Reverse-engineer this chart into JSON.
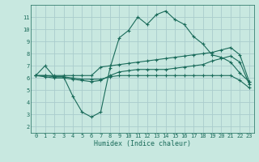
{
  "line1_x": [
    0,
    1,
    2,
    3,
    4,
    5,
    6,
    7,
    8,
    9,
    10,
    11,
    12,
    13,
    14,
    15,
    16,
    17,
    18,
    19,
    20,
    21,
    22,
    23
  ],
  "line1_y": [
    6.2,
    7.0,
    6.1,
    6.1,
    4.5,
    3.2,
    2.8,
    3.2,
    6.8,
    9.3,
    9.9,
    11.0,
    10.4,
    11.2,
    11.5,
    10.8,
    10.4,
    9.4,
    8.8,
    7.9,
    7.7,
    7.3,
    6.4,
    5.7
  ],
  "line2_x": [
    0,
    1,
    2,
    3,
    4,
    5,
    6,
    7,
    8,
    9,
    10,
    11,
    12,
    13,
    14,
    15,
    16,
    17,
    18,
    19,
    20,
    21,
    22,
    23
  ],
  "line2_y": [
    6.2,
    6.2,
    6.2,
    6.2,
    6.2,
    6.2,
    6.2,
    6.9,
    7.0,
    7.1,
    7.2,
    7.3,
    7.4,
    7.5,
    7.6,
    7.7,
    7.8,
    7.9,
    8.0,
    8.1,
    8.3,
    8.5,
    7.9,
    5.7
  ],
  "line3_x": [
    0,
    1,
    2,
    3,
    4,
    5,
    6,
    7,
    8,
    9,
    10,
    11,
    12,
    13,
    14,
    15,
    16,
    17,
    18,
    19,
    20,
    21,
    22,
    23
  ],
  "line3_y": [
    6.2,
    6.2,
    6.1,
    6.1,
    6.0,
    5.9,
    5.9,
    5.9,
    6.1,
    6.2,
    6.2,
    6.2,
    6.2,
    6.2,
    6.2,
    6.2,
    6.2,
    6.2,
    6.2,
    6.2,
    6.2,
    6.2,
    5.8,
    5.2
  ],
  "line4_x": [
    0,
    1,
    2,
    3,
    4,
    5,
    6,
    7,
    8,
    9,
    10,
    11,
    12,
    13,
    14,
    15,
    16,
    17,
    18,
    19,
    20,
    21,
    22,
    23
  ],
  "line4_y": [
    6.2,
    6.1,
    6.0,
    6.0,
    5.9,
    5.8,
    5.7,
    5.8,
    6.2,
    6.5,
    6.6,
    6.7,
    6.7,
    6.7,
    6.7,
    6.8,
    6.9,
    7.0,
    7.1,
    7.4,
    7.6,
    7.8,
    7.3,
    5.5
  ],
  "color": "#1a6b5a",
  "bg_color": "#c8e8e0",
  "grid_color": "#aacccc",
  "xlabel": "Humidex (Indice chaleur)",
  "ylim": [
    1.5,
    12.0
  ],
  "xlim": [
    -0.5,
    23.5
  ],
  "yticks": [
    2,
    3,
    4,
    5,
    6,
    7,
    8,
    9,
    10,
    11
  ],
  "xticks": [
    0,
    1,
    2,
    3,
    4,
    5,
    6,
    7,
    8,
    9,
    10,
    11,
    12,
    13,
    14,
    15,
    16,
    17,
    18,
    19,
    20,
    21,
    22,
    23
  ],
  "marker": "+",
  "markersize": 3,
  "linewidth": 0.8,
  "tick_fontsize": 5,
  "xlabel_fontsize": 6
}
